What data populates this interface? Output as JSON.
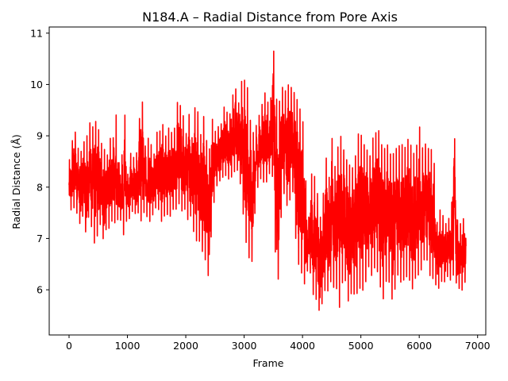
{
  "chart_data": {
    "type": "line",
    "title": "N184.A – Radial Distance from Pore Axis",
    "xlabel": "Frame",
    "ylabel": "Radial Distance (Å)",
    "xlim": [
      -340,
      7140
    ],
    "ylim": [
      5.12,
      11.12
    ],
    "xticks": [
      0,
      1000,
      2000,
      3000,
      4000,
      5000,
      6000,
      7000
    ],
    "xtick_labels": [
      "0",
      "1000",
      "2000",
      "3000",
      "4000",
      "5000",
      "6000",
      "7000"
    ],
    "yticks": [
      6,
      7,
      8,
      9,
      10,
      11
    ],
    "ytick_labels": [
      "6",
      "7",
      "8",
      "9",
      "10",
      "11"
    ],
    "grid": false,
    "series": [
      {
        "color": "#ff0000",
        "x": [
          0,
          50,
          100,
          150,
          200,
          250,
          300,
          350,
          400,
          450,
          500,
          550,
          600,
          650,
          700,
          750,
          800,
          850,
          900,
          950,
          1000,
          1050,
          1100,
          1150,
          1200,
          1250,
          1300,
          1350,
          1400,
          1450,
          1500,
          1550,
          1600,
          1650,
          1700,
          1750,
          1800,
          1850,
          1900,
          1950,
          2000,
          2050,
          2100,
          2150,
          2200,
          2250,
          2300,
          2350,
          2400,
          2450,
          2500,
          2550,
          2600,
          2650,
          2700,
          2750,
          2800,
          2850,
          2900,
          2950,
          3000,
          3050,
          3100,
          3150,
          3200,
          3250,
          3300,
          3350,
          3400,
          3450,
          3500,
          3550,
          3600,
          3650,
          3700,
          3750,
          3800,
          3850,
          3900,
          3950,
          4000,
          4050,
          4100,
          4150,
          4200,
          4250,
          4300,
          4350,
          4400,
          4450,
          4500,
          4550,
          4600,
          4650,
          4700,
          4750,
          4800,
          4850,
          4900,
          4950,
          5000,
          5050,
          5100,
          5150,
          5200,
          5250,
          5300,
          5350,
          5400,
          5450,
          5500,
          5550,
          5600,
          5650,
          5700,
          5750,
          5800,
          5850,
          5900,
          5950,
          6000,
          6050,
          6100,
          6150,
          6200,
          6250,
          6300,
          6350,
          6400,
          6450,
          6500,
          6550,
          6600,
          6650,
          6700,
          6750,
          6800
        ],
        "max": [
          8.5,
          8.9,
          9.15,
          8.8,
          8.7,
          8.9,
          9.0,
          9.3,
          9.2,
          9.35,
          9.2,
          8.9,
          8.8,
          8.6,
          9.0,
          8.9,
          9.6,
          8.5,
          8.5,
          9.65,
          8.2,
          8.7,
          8.6,
          8.6,
          9.3,
          9.85,
          8.8,
          9.0,
          8.9,
          8.6,
          9.1,
          9.1,
          9.3,
          9.0,
          9.2,
          9.1,
          9.1,
          9.7,
          9.65,
          9.5,
          9.0,
          9.55,
          8.9,
          9.6,
          9.6,
          9.0,
          9.5,
          9.0,
          8.7,
          9.4,
          9.1,
          9.2,
          9.2,
          9.6,
          9.5,
          9.4,
          9.8,
          10.0,
          9.6,
          10.1,
          10.15,
          10.1,
          9.4,
          9.1,
          9.2,
          9.4,
          9.6,
          9.9,
          9.7,
          9.6,
          10.85,
          9.8,
          9.7,
          10.0,
          9.9,
          10.05,
          10.0,
          9.9,
          9.8,
          9.6,
          9.5,
          8.3,
          7.3,
          8.3,
          8.3,
          8.0,
          7.4,
          7.8,
          8.7,
          8.1,
          9.1,
          8.4,
          8.8,
          9.1,
          8.8,
          8.6,
          8.5,
          8.4,
          8.6,
          9.1,
          9.1,
          8.9,
          8.8,
          8.6,
          9.0,
          9.1,
          9.2,
          8.9,
          8.8,
          8.9,
          8.7,
          8.7,
          8.8,
          8.85,
          8.9,
          8.8,
          9.0,
          8.9,
          8.7,
          8.8,
          9.3,
          8.8,
          8.9,
          8.8,
          8.8,
          8.7,
          7.3,
          7.6,
          7.5,
          7.3,
          7.4,
          7.5,
          9.25,
          7.4,
          7.3,
          7.4,
          7.5,
          7.6,
          7.8,
          7.5,
          7.3
        ],
        "min": [
          7.6,
          7.5,
          7.6,
          7.4,
          7.2,
          7.5,
          6.9,
          7.6,
          7.0,
          6.8,
          7.1,
          7.3,
          6.8,
          7.3,
          7.1,
          7.4,
          7.2,
          7.4,
          7.3,
          6.9,
          7.5,
          7.3,
          7.6,
          7.4,
          7.5,
          7.2,
          7.6,
          7.3,
          7.3,
          7.5,
          7.6,
          7.5,
          7.2,
          7.5,
          7.4,
          7.4,
          7.6,
          7.5,
          7.7,
          7.4,
          7.6,
          7.2,
          7.5,
          6.9,
          6.9,
          6.9,
          6.6,
          6.5,
          6.1,
          7.4,
          7.8,
          8.1,
          8.1,
          8.2,
          8.2,
          8.1,
          8.2,
          8.3,
          8.3,
          7.9,
          7.2,
          6.7,
          6.5,
          6.5,
          7.9,
          8.0,
          8.2,
          8.0,
          8.1,
          8.3,
          8.1,
          6.0,
          6.2,
          7.9,
          7.8,
          7.5,
          7.8,
          7.9,
          6.5,
          6.4,
          6.2,
          6.0,
          6.5,
          6.2,
          5.7,
          5.8,
          5.45,
          5.8,
          6.0,
          5.9,
          6.2,
          5.9,
          6.0,
          5.4,
          6.4,
          6.0,
          5.6,
          6.0,
          5.8,
          5.9,
          6.0,
          5.9,
          6.2,
          6.5,
          6.1,
          6.5,
          6.2,
          5.9,
          5.7,
          6.3,
          6.0,
          5.65,
          6.1,
          6.3,
          6.0,
          6.2,
          6.2,
          6.1,
          5.9,
          6.3,
          6.2,
          6.4,
          6.6,
          6.5,
          6.1,
          6.2,
          6.0,
          6.0,
          6.2,
          6.1,
          6.3,
          6.1,
          6.3,
          6.0,
          6.0,
          5.95,
          6.2,
          6.1,
          6.0,
          6.2,
          6.1
        ]
      }
    ]
  }
}
